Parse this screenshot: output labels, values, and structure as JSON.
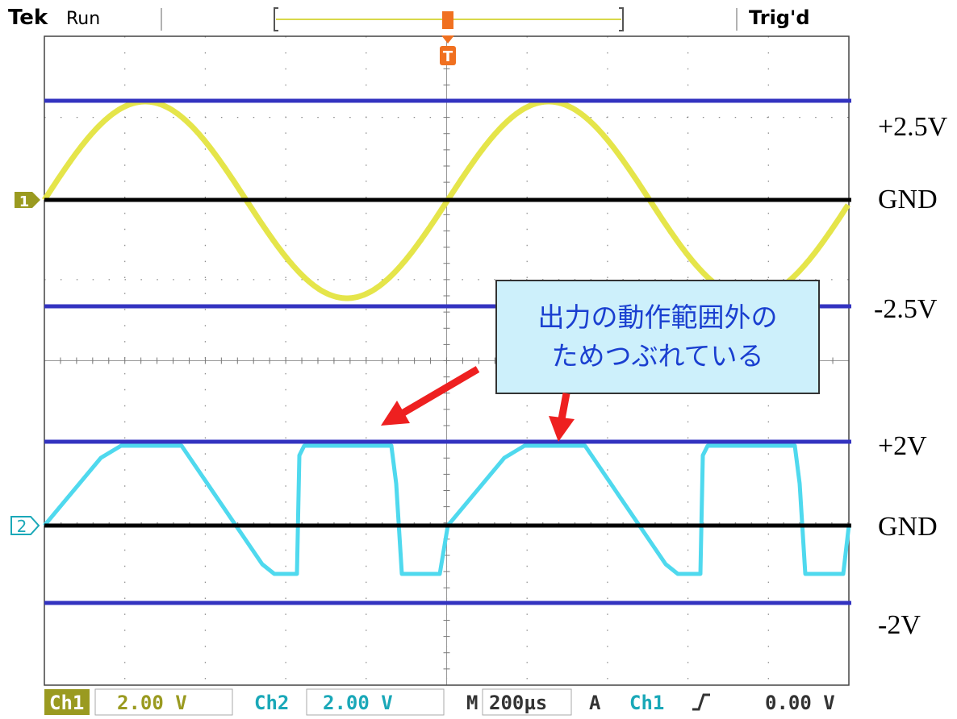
{
  "header": {
    "brand": "Tek",
    "status": "Run",
    "trigger_status": "Trig'd",
    "trigger_marker": "T"
  },
  "markers": {
    "ch1": "1",
    "ch2": "2"
  },
  "levels": [
    "+2.5V",
    "GND",
    "-2.5V",
    "+2V",
    "GND",
    "-2V"
  ],
  "callout": {
    "lines": [
      "出力の動作範囲外の",
      "ためつぶれている"
    ]
  },
  "status_bar": {
    "ch1_label": "Ch1",
    "ch1_scale": "2.00 V",
    "ch2_label": "Ch2",
    "ch2_scale": "2.00 V",
    "timebase_label": "M",
    "timebase": "200µs",
    "trigger_mode": "A",
    "trigger_source": "Ch1",
    "trigger_level": "0.00 V"
  }
}
